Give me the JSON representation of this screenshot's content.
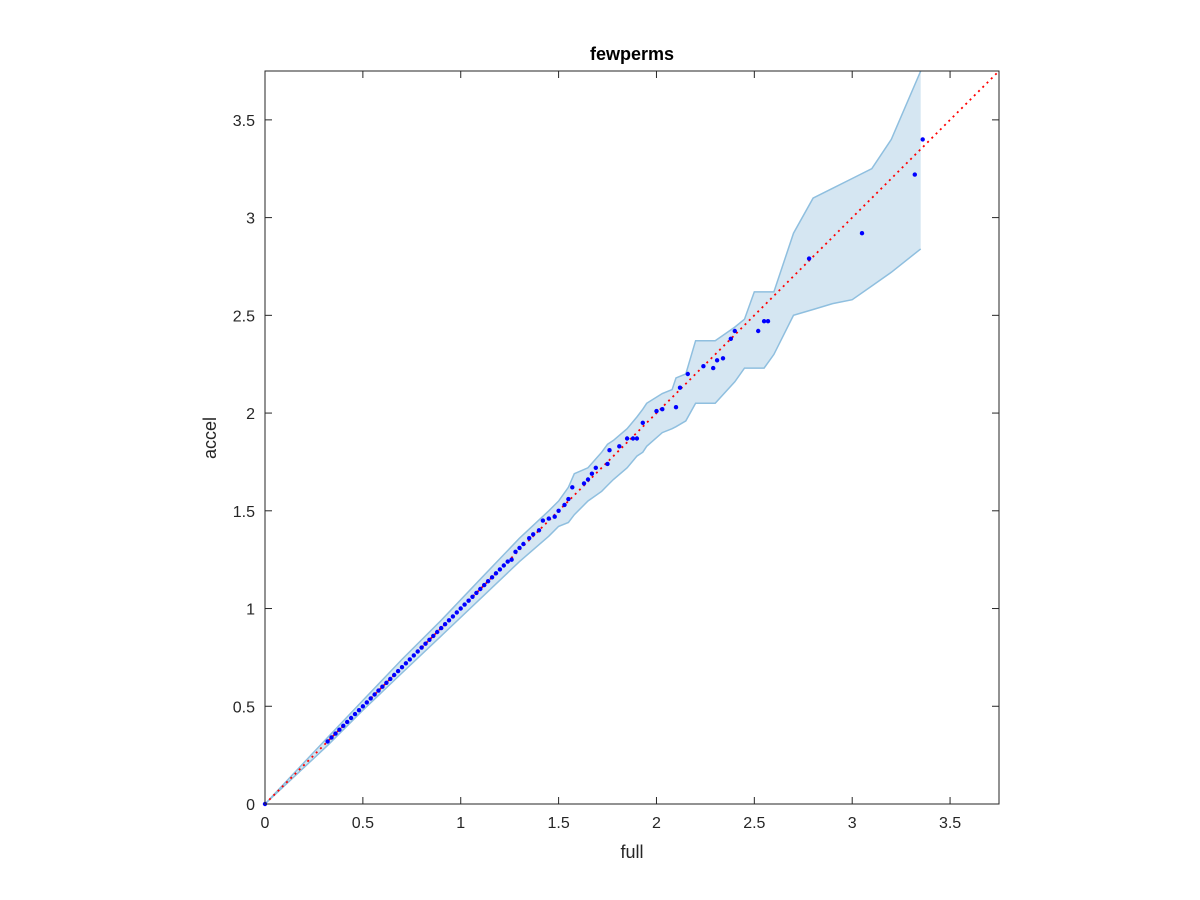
{
  "chart_data": {
    "type": "scatter",
    "title": "fewperms",
    "xlabel": "full",
    "ylabel": "accel",
    "xlim": [
      0,
      3.75
    ],
    "ylim": [
      0,
      3.75
    ],
    "xticks": [
      0,
      0.5,
      1,
      1.5,
      2,
      2.5,
      3,
      3.5
    ],
    "xtick_labels": [
      "0",
      "0.5",
      "1",
      "1.5",
      "2",
      "2.5",
      "3",
      "3.5"
    ],
    "yticks": [
      0,
      0.5,
      1,
      1.5,
      2,
      2.5,
      3,
      3.5
    ],
    "ytick_labels": [
      "0",
      "0.5",
      "1",
      "1.5",
      "2",
      "2.5",
      "3",
      "3.5"
    ],
    "grid": false,
    "box": true,
    "colors": {
      "points": "#0000ff",
      "reference_line": "#ff0000",
      "band_fill": "#d5e6f2",
      "band_edge": "#8fbfdf",
      "axes": "#262626"
    },
    "reference_line": {
      "style": "dotted",
      "from": [
        0,
        0
      ],
      "to": [
        3.75,
        3.75
      ]
    },
    "band": {
      "x": [
        0,
        0.32,
        0.5,
        0.7,
        0.9,
        1.1,
        1.3,
        1.45,
        1.5,
        1.55,
        1.58,
        1.65,
        1.72,
        1.75,
        1.78,
        1.85,
        1.9,
        1.93,
        1.95,
        2.03,
        2.08,
        2.1,
        2.15,
        2.2,
        2.3,
        2.4,
        2.45,
        2.5,
        2.55,
        2.6,
        2.7,
        2.8,
        2.9,
        3.0,
        3.1,
        3.2,
        3.35
      ],
      "upper": [
        0,
        0.34,
        0.53,
        0.74,
        0.94,
        1.15,
        1.36,
        1.5,
        1.55,
        1.62,
        1.69,
        1.72,
        1.8,
        1.84,
        1.86,
        1.92,
        1.98,
        2.02,
        2.05,
        2.1,
        2.12,
        2.18,
        2.2,
        2.37,
        2.37,
        2.44,
        2.48,
        2.62,
        2.62,
        2.62,
        2.92,
        3.1,
        3.15,
        3.2,
        3.25,
        3.4,
        3.75
      ],
      "lower": [
        0,
        0.3,
        0.48,
        0.67,
        0.86,
        1.05,
        1.24,
        1.37,
        1.42,
        1.44,
        1.48,
        1.55,
        1.6,
        1.63,
        1.66,
        1.72,
        1.78,
        1.8,
        1.83,
        1.9,
        1.92,
        1.93,
        1.96,
        2.05,
        2.05,
        2.16,
        2.23,
        2.23,
        2.23,
        2.3,
        2.5,
        2.53,
        2.56,
        2.58,
        2.65,
        2.72,
        2.84
      ]
    },
    "points": [
      [
        0,
        0
      ],
      [
        0.32,
        0.32
      ],
      [
        0.34,
        0.34
      ],
      [
        0.36,
        0.36
      ],
      [
        0.38,
        0.38
      ],
      [
        0.4,
        0.4
      ],
      [
        0.42,
        0.42
      ],
      [
        0.44,
        0.44
      ],
      [
        0.46,
        0.46
      ],
      [
        0.48,
        0.48
      ],
      [
        0.5,
        0.5
      ],
      [
        0.52,
        0.52
      ],
      [
        0.54,
        0.54
      ],
      [
        0.56,
        0.56
      ],
      [
        0.58,
        0.58
      ],
      [
        0.6,
        0.6
      ],
      [
        0.62,
        0.62
      ],
      [
        0.64,
        0.64
      ],
      [
        0.66,
        0.66
      ],
      [
        0.68,
        0.68
      ],
      [
        0.7,
        0.7
      ],
      [
        0.72,
        0.72
      ],
      [
        0.74,
        0.74
      ],
      [
        0.76,
        0.76
      ],
      [
        0.78,
        0.78
      ],
      [
        0.8,
        0.8
      ],
      [
        0.82,
        0.82
      ],
      [
        0.84,
        0.84
      ],
      [
        0.86,
        0.86
      ],
      [
        0.88,
        0.88
      ],
      [
        0.9,
        0.9
      ],
      [
        0.92,
        0.92
      ],
      [
        0.94,
        0.94
      ],
      [
        0.96,
        0.96
      ],
      [
        0.98,
        0.98
      ],
      [
        1.0,
        1.0
      ],
      [
        1.02,
        1.02
      ],
      [
        1.04,
        1.04
      ],
      [
        1.06,
        1.06
      ],
      [
        1.08,
        1.08
      ],
      [
        1.1,
        1.1
      ],
      [
        1.12,
        1.12
      ],
      [
        1.14,
        1.14
      ],
      [
        1.16,
        1.16
      ],
      [
        1.18,
        1.18
      ],
      [
        1.2,
        1.2
      ],
      [
        1.22,
        1.22
      ],
      [
        1.24,
        1.24
      ],
      [
        1.26,
        1.25
      ],
      [
        1.28,
        1.29
      ],
      [
        1.3,
        1.31
      ],
      [
        1.32,
        1.33
      ],
      [
        1.35,
        1.36
      ],
      [
        1.37,
        1.38
      ],
      [
        1.4,
        1.4
      ],
      [
        1.42,
        1.45
      ],
      [
        1.45,
        1.46
      ],
      [
        1.48,
        1.47
      ],
      [
        1.5,
        1.5
      ],
      [
        1.53,
        1.53
      ],
      [
        1.55,
        1.56
      ],
      [
        1.57,
        1.62
      ],
      [
        1.63,
        1.64
      ],
      [
        1.65,
        1.66
      ],
      [
        1.67,
        1.69
      ],
      [
        1.69,
        1.72
      ],
      [
        1.75,
        1.74
      ],
      [
        1.76,
        1.81
      ],
      [
        1.81,
        1.83
      ],
      [
        1.85,
        1.87
      ],
      [
        1.88,
        1.87
      ],
      [
        1.9,
        1.87
      ],
      [
        1.93,
        1.95
      ],
      [
        2.0,
        2.01
      ],
      [
        2.03,
        2.02
      ],
      [
        2.1,
        2.03
      ],
      [
        2.12,
        2.13
      ],
      [
        2.16,
        2.2
      ],
      [
        2.24,
        2.24
      ],
      [
        2.29,
        2.23
      ],
      [
        2.31,
        2.27
      ],
      [
        2.34,
        2.28
      ],
      [
        2.38,
        2.38
      ],
      [
        2.4,
        2.42
      ],
      [
        2.52,
        2.42
      ],
      [
        2.55,
        2.47
      ],
      [
        2.57,
        2.47
      ],
      [
        2.78,
        2.79
      ],
      [
        3.05,
        2.92
      ],
      [
        3.32,
        3.22
      ],
      [
        3.36,
        3.4
      ]
    ]
  }
}
